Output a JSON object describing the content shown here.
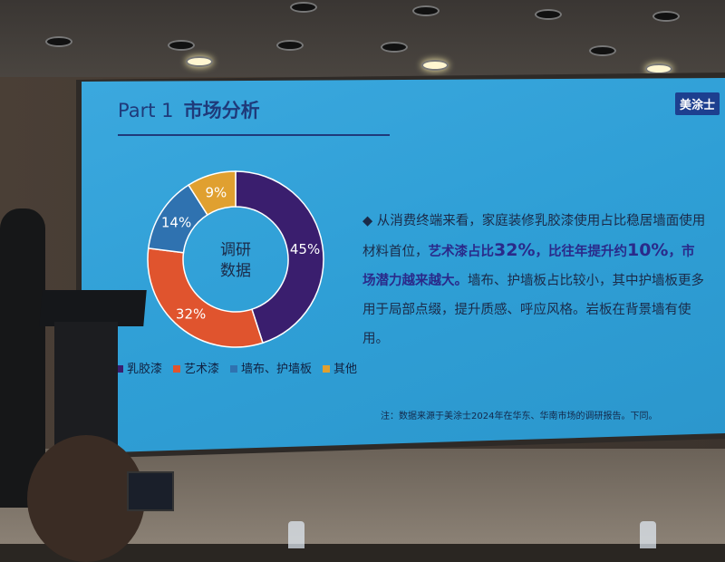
{
  "slide": {
    "title_prefix": "Part 1",
    "title_main": "市场分析",
    "logo_text": "美涂士",
    "bullet_icon": "diamond-bullet-icon",
    "paragraph": {
      "p1": "从消费终端来看，家庭装修乳胶漆使用占比稳居墙面使用材料首位，",
      "p2": "艺术漆占比",
      "p3": "32%",
      "p4": "，比往年提升约",
      "p5": "10%",
      "p6": "，市场潜力越来越大。",
      "p7": "墙布、护墙板占比较小，其中护墙板更多用于局部点缀，提升质感、呼应风格。岩板在背景墙有使用。"
    },
    "note": "注：数据来源于美涂士2024年在华东、华南市场的调研报告。下同。"
  },
  "chart_data": {
    "type": "pie",
    "donut": true,
    "center_label_line1": "调研",
    "center_label_line2": "数据",
    "categories": [
      "乳胶漆",
      "艺术漆",
      "墙布、护墙板",
      "其他"
    ],
    "values": [
      45,
      32,
      14,
      9
    ],
    "value_labels": [
      "45%",
      "32%",
      "14%",
      "9%"
    ],
    "colors": [
      "#3a1e6e",
      "#e0542e",
      "#2f72b0",
      "#e0a030"
    ],
    "legend_position": "bottom"
  }
}
